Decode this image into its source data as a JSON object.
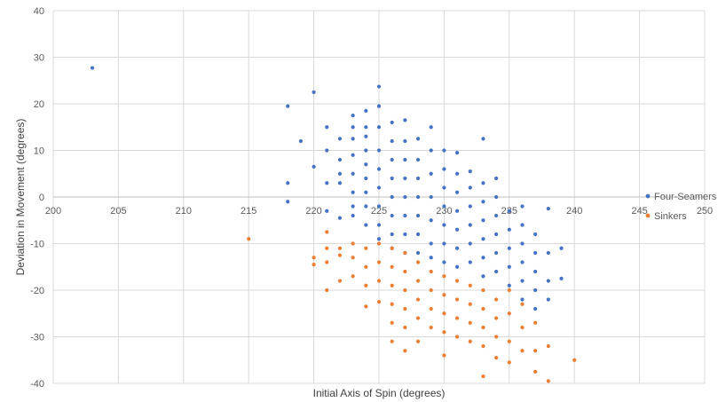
{
  "chart_data": {
    "type": "scatter",
    "title": "",
    "xlabel": "Initial Axis of Spin (degrees)",
    "ylabel": "Deviation in Movement (degrees)",
    "xlim": [
      200,
      250
    ],
    "ylim": [
      -40,
      40
    ],
    "x_ticks": [
      200,
      205,
      210,
      215,
      220,
      225,
      230,
      235,
      240,
      245,
      250
    ],
    "y_ticks": [
      40,
      30,
      20,
      10,
      0,
      -10,
      -20,
      -30,
      -40
    ],
    "grid": true,
    "legend": "right",
    "series": [
      {
        "name": "Four-Seamers",
        "color": "#4472C4",
        "points": [
          [
            203,
            27.7
          ],
          [
            218,
            19.5
          ],
          [
            218,
            3
          ],
          [
            218,
            -1
          ],
          [
            219,
            12
          ],
          [
            220,
            22.5
          ],
          [
            220,
            6.5
          ],
          [
            221,
            15
          ],
          [
            221,
            10
          ],
          [
            221,
            3
          ],
          [
            221,
            -3
          ],
          [
            222,
            12.5
          ],
          [
            222,
            8
          ],
          [
            222,
            5
          ],
          [
            222,
            3
          ],
          [
            222,
            -4.5
          ],
          [
            223,
            17.5
          ],
          [
            223,
            15
          ],
          [
            223,
            12.5
          ],
          [
            223,
            9
          ],
          [
            223,
            5
          ],
          [
            223,
            1
          ],
          [
            223,
            -2
          ],
          [
            223,
            -4
          ],
          [
            224,
            18.5
          ],
          [
            224,
            15
          ],
          [
            224,
            13
          ],
          [
            224,
            10
          ],
          [
            224,
            7
          ],
          [
            224,
            4
          ],
          [
            224,
            1
          ],
          [
            224,
            -2
          ],
          [
            224,
            -6
          ],
          [
            225,
            23.7
          ],
          [
            225,
            19.5
          ],
          [
            225,
            15
          ],
          [
            225,
            10
          ],
          [
            225,
            6
          ],
          [
            225,
            2
          ],
          [
            225,
            -2
          ],
          [
            225,
            -6
          ],
          [
            225,
            -9
          ],
          [
            226,
            16
          ],
          [
            226,
            12
          ],
          [
            226,
            8
          ],
          [
            226,
            4
          ],
          [
            226,
            0
          ],
          [
            226,
            -4
          ],
          [
            226,
            -8
          ],
          [
            226,
            -11
          ],
          [
            227,
            16.5
          ],
          [
            227,
            12
          ],
          [
            227,
            8
          ],
          [
            227,
            4
          ],
          [
            227,
            0
          ],
          [
            227,
            -4
          ],
          [
            227,
            -8
          ],
          [
            227,
            -12
          ],
          [
            228,
            12.5
          ],
          [
            228,
            8
          ],
          [
            228,
            4
          ],
          [
            228,
            0
          ],
          [
            228,
            -4
          ],
          [
            228,
            -8
          ],
          [
            228,
            -12
          ],
          [
            229,
            15
          ],
          [
            229,
            10
          ],
          [
            229,
            5
          ],
          [
            229,
            0
          ],
          [
            229,
            -5
          ],
          [
            229,
            -10
          ],
          [
            229,
            -13
          ],
          [
            230,
            10
          ],
          [
            230,
            6
          ],
          [
            230,
            2
          ],
          [
            230,
            -2
          ],
          [
            230,
            -6
          ],
          [
            230,
            -10
          ],
          [
            230,
            -14
          ],
          [
            231,
            9.5
          ],
          [
            231,
            5
          ],
          [
            231,
            1
          ],
          [
            231,
            -3
          ],
          [
            231,
            -7
          ],
          [
            231,
            -11
          ],
          [
            231,
            -15
          ],
          [
            232,
            5.5
          ],
          [
            232,
            2
          ],
          [
            232,
            -2
          ],
          [
            232,
            -6
          ],
          [
            232,
            -10
          ],
          [
            232,
            -14
          ],
          [
            233,
            12.5
          ],
          [
            233,
            3
          ],
          [
            233,
            -1
          ],
          [
            233,
            -5
          ],
          [
            233,
            -9
          ],
          [
            233,
            -13
          ],
          [
            233,
            -17
          ],
          [
            234,
            4
          ],
          [
            234,
            0
          ],
          [
            234,
            -4
          ],
          [
            234,
            -8
          ],
          [
            234,
            -12
          ],
          [
            234,
            -16
          ],
          [
            235,
            -3
          ],
          [
            235,
            -7
          ],
          [
            235,
            -11
          ],
          [
            235,
            -15
          ],
          [
            235,
            -19
          ],
          [
            236,
            -2
          ],
          [
            236,
            -6
          ],
          [
            236,
            -10
          ],
          [
            236,
            -14
          ],
          [
            236,
            -18
          ],
          [
            236,
            -22
          ],
          [
            237,
            -8
          ],
          [
            237,
            -12
          ],
          [
            237,
            -16
          ],
          [
            237,
            -20
          ],
          [
            237,
            -24
          ],
          [
            238,
            -2.5
          ],
          [
            238,
            -12
          ],
          [
            238,
            -18
          ],
          [
            238,
            -22
          ],
          [
            239,
            -11
          ],
          [
            239,
            -17.5
          ]
        ]
      },
      {
        "name": "Sinkers",
        "color": "#ED7D31",
        "points": [
          [
            215,
            -9
          ],
          [
            220,
            -13
          ],
          [
            220,
            -14.5
          ],
          [
            221,
            -7.5
          ],
          [
            221,
            -11
          ],
          [
            221,
            -14
          ],
          [
            221,
            -20
          ],
          [
            222,
            -11
          ],
          [
            222,
            -12.5
          ],
          [
            222,
            -18
          ],
          [
            223,
            -10
          ],
          [
            223,
            -13
          ],
          [
            223,
            -17
          ],
          [
            224,
            -11
          ],
          [
            224,
            -15
          ],
          [
            224,
            -19
          ],
          [
            224,
            -23.5
          ],
          [
            225,
            -10
          ],
          [
            225,
            -14
          ],
          [
            225,
            -18
          ],
          [
            225,
            -22.5
          ],
          [
            226,
            -11
          ],
          [
            226,
            -15
          ],
          [
            226,
            -19
          ],
          [
            226,
            -23
          ],
          [
            226,
            -27
          ],
          [
            226,
            -31
          ],
          [
            227,
            -12
          ],
          [
            227,
            -16
          ],
          [
            227,
            -20
          ],
          [
            227,
            -24
          ],
          [
            227,
            -28
          ],
          [
            227,
            -33
          ],
          [
            228,
            -14
          ],
          [
            228,
            -18
          ],
          [
            228,
            -22
          ],
          [
            228,
            -26
          ],
          [
            228,
            -31
          ],
          [
            229,
            -16
          ],
          [
            229,
            -20
          ],
          [
            229,
            -24
          ],
          [
            229,
            -28
          ],
          [
            230,
            -17
          ],
          [
            230,
            -21
          ],
          [
            230,
            -25
          ],
          [
            230,
            -29
          ],
          [
            230,
            -34
          ],
          [
            231,
            -18
          ],
          [
            231,
            -22
          ],
          [
            231,
            -26
          ],
          [
            231,
            -30
          ],
          [
            232,
            -19
          ],
          [
            232,
            -23
          ],
          [
            232,
            -27
          ],
          [
            232,
            -31
          ],
          [
            233,
            -20
          ],
          [
            233,
            -24
          ],
          [
            233,
            -28
          ],
          [
            233,
            -32
          ],
          [
            233,
            -38.5
          ],
          [
            234,
            -22
          ],
          [
            234,
            -26
          ],
          [
            234,
            -30
          ],
          [
            234,
            -34.5
          ],
          [
            235,
            -20
          ],
          [
            235,
            -25
          ],
          [
            235,
            -31
          ],
          [
            235,
            -35.5
          ],
          [
            236,
            -23
          ],
          [
            236,
            -28
          ],
          [
            236,
            -33
          ],
          [
            237,
            -27
          ],
          [
            237,
            -33
          ],
          [
            237,
            -37.5
          ],
          [
            238,
            -32
          ],
          [
            238,
            -39.5
          ],
          [
            240,
            -35
          ]
        ]
      }
    ]
  }
}
